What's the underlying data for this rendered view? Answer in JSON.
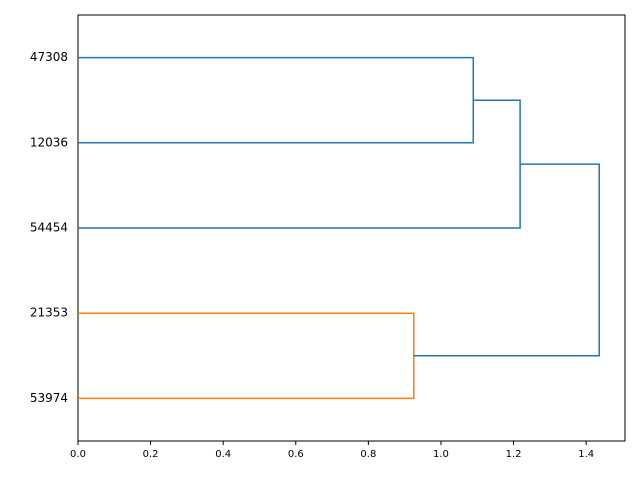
{
  "chart_data": {
    "type": "dendrogram",
    "leaves": [
      "47308",
      "12036",
      "54454",
      "21353",
      "53974"
    ],
    "links": [
      {
        "children": [
          3,
          4
        ],
        "height": 0.925,
        "color": "#ff7f0e"
      },
      {
        "children": [
          0,
          1
        ],
        "height": 1.089,
        "color": "#1f77b4"
      },
      {
        "children": [
          6,
          2
        ],
        "height": 1.218,
        "color": "#1f77b4"
      },
      {
        "children": [
          7,
          5
        ],
        "height": 1.436,
        "color": "#1f77b4"
      }
    ],
    "xlim": [
      0,
      1.507
    ],
    "xticks": [
      {
        "value": 0,
        "label": "0.0"
      },
      0.2,
      0.4,
      0.6,
      0.8,
      {
        "value": 1,
        "label": "1.0"
      },
      1.2,
      1.4
    ],
    "grid": false
  }
}
